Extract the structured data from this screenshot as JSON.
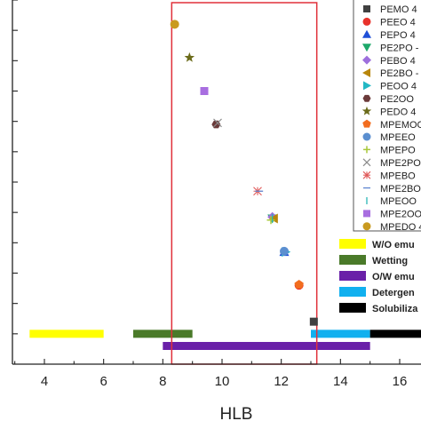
{
  "chart_data": {
    "type": "scatter",
    "xlabel": "HLB",
    "ylabel": "",
    "xlim": [
      2.2,
      17.2
    ],
    "ylim": [
      0,
      12
    ],
    "grid": false,
    "x_ticks": [
      4,
      6,
      8,
      10,
      12,
      14,
      16
    ],
    "x_tick_labels": [
      "4",
      "6",
      "8",
      "10",
      "12",
      "14",
      "16"
    ],
    "legend_position": "top-right",
    "highlight_region": {
      "x": [
        8.3,
        13.2
      ],
      "color": "#e0303a"
    },
    "series": [
      {
        "name": "PEMO 4",
        "marker": "square",
        "color": "#404040",
        "values": [
          {
            "x": 13.1,
            "y": 1.4
          }
        ]
      },
      {
        "name": "PEEO 4",
        "marker": "circle",
        "color": "#e8322b",
        "values": [
          {
            "x": 12.6,
            "y": 2.6
          }
        ]
      },
      {
        "name": "PEPO 4",
        "marker": "triangle-up",
        "color": "#1f50d8",
        "values": [
          {
            "x": 12.1,
            "y": 3.7
          }
        ]
      },
      {
        "name": "PE2PO -",
        "marker": "triangle-down",
        "color": "#1ea86a",
        "values": [
          {
            "x": 11.7,
            "y": 4.8
          }
        ]
      },
      {
        "name": "PEBO 4",
        "marker": "diamond",
        "color": "#9d6fdd",
        "values": [
          {
            "x": 11.7,
            "y": 4.85
          }
        ]
      },
      {
        "name": "PE2BO -",
        "marker": "triangle-left",
        "color": "#b8860b",
        "values": [
          {
            "x": 11.75,
            "y": 4.8
          }
        ]
      },
      {
        "name": "PEOO 4",
        "marker": "triangle-right",
        "color": "#23b8c4",
        "values": [
          {
            "x": 12.15,
            "y": 3.7
          }
        ]
      },
      {
        "name": "PE2OO",
        "marker": "hexagon",
        "color": "#6b3a3a",
        "values": [
          {
            "x": 9.8,
            "y": 7.9
          }
        ]
      },
      {
        "name": "PEDO 4",
        "marker": "star",
        "color": "#6b6b1a",
        "values": [
          {
            "x": 8.9,
            "y": 10.1
          }
        ]
      },
      {
        "name": "MPEMOO",
        "marker": "pentagon",
        "color": "#f26d1f",
        "values": [
          {
            "x": 12.6,
            "y": 2.62
          }
        ]
      },
      {
        "name": "MPEEO",
        "marker": "sphere",
        "color": "#5b8fd0",
        "values": [
          {
            "x": 12.1,
            "y": 3.72
          }
        ]
      },
      {
        "name": "MPEPO",
        "marker": "plus",
        "color": "#a8c83a",
        "values": [
          {
            "x": 11.65,
            "y": 4.75
          }
        ]
      },
      {
        "name": "MPE2PO",
        "marker": "cross",
        "color": "#8a8a8a",
        "values": [
          {
            "x": 9.85,
            "y": 7.95
          }
        ]
      },
      {
        "name": "MPEBO",
        "marker": "asterisk",
        "color": "#e05a5a",
        "values": [
          {
            "x": 11.2,
            "y": 5.7
          }
        ]
      },
      {
        "name": "MPE2BO",
        "marker": "dash",
        "color": "#5f86d0",
        "values": [
          {
            "x": 11.25,
            "y": 5.7
          }
        ]
      },
      {
        "name": "MPEOO",
        "marker": "vline",
        "color": "#2bb7b7",
        "values": [
          {
            "x": 11.7,
            "y": 4.82
          }
        ]
      },
      {
        "name": "MPE2OO",
        "marker": "square",
        "color": "#a86ee0",
        "values": [
          {
            "x": 9.4,
            "y": 9.0
          }
        ]
      },
      {
        "name": "MPEDO 4",
        "marker": "circle",
        "color": "#c99a1f",
        "values": [
          {
            "x": 8.4,
            "y": 11.2
          }
        ]
      }
    ],
    "ranges": [
      {
        "name": "W/O emu",
        "x": [
          3.5,
          6.0
        ],
        "level": 1,
        "color": "#ffff00"
      },
      {
        "name": "Wetting",
        "x": [
          7.0,
          9.0
        ],
        "level": 1,
        "color": "#4a7a29"
      },
      {
        "name": "O/W emu",
        "x": [
          8.0,
          15.0
        ],
        "level": 0.6,
        "color": "#6a20a8"
      },
      {
        "name": "Detergen",
        "x": [
          13.0,
          15.0
        ],
        "level": 1,
        "color": "#11b0ef"
      },
      {
        "name": "Solubiliza",
        "x": [
          15.0,
          17.2
        ],
        "level": 1,
        "color": "#000000"
      }
    ]
  }
}
